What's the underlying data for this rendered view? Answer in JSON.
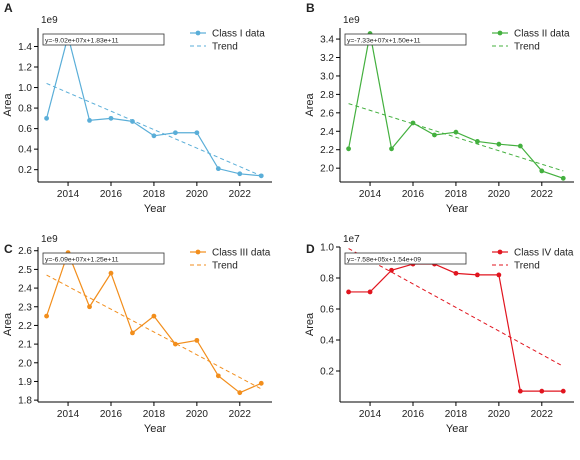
{
  "colors": {
    "class1": "#5aaed8",
    "class2": "#44b03f",
    "class3": "#f28e1c",
    "class4": "#e1151f",
    "axis": "#000000",
    "text": "#222222"
  },
  "chart_data": [
    {
      "panel_letter": "A",
      "type": "line",
      "exponent_label": "1e9",
      "xlabel": "Year",
      "ylabel": "Area",
      "xlim": [
        2012.6,
        2023.5
      ],
      "ylim": [
        0.08,
        1.58
      ],
      "xticks": [
        "2014",
        "2016",
        "2018",
        "2020",
        "2022"
      ],
      "yticks": [
        "0.2",
        "0.4",
        "0.6",
        "0.8",
        "1.0",
        "1.2",
        "1.4"
      ],
      "equation": "y=-9.02e+07x+1.83e+11",
      "color_key": "class1",
      "legend_position": "top-right",
      "series": [
        {
          "name": "Class I data",
          "x": [
            2013,
            2014,
            2015,
            2016,
            2017,
            2018,
            2019,
            2020,
            2021,
            2022,
            2023
          ],
          "y": [
            0.7,
            1.5,
            0.68,
            0.7,
            0.67,
            0.53,
            0.56,
            0.56,
            0.21,
            0.16,
            0.14
          ]
        }
      ],
      "trend": {
        "name": "Trend",
        "x": [
          2013,
          2023
        ],
        "y": [
          1.04,
          0.14
        ]
      }
    },
    {
      "panel_letter": "B",
      "type": "line",
      "exponent_label": "1e9",
      "xlabel": "Year",
      "ylabel": "Area",
      "xlim": [
        2012.6,
        2023.5
      ],
      "ylim": [
        1.85,
        3.52
      ],
      "xticks": [
        "2014",
        "2016",
        "2018",
        "2020",
        "2022"
      ],
      "yticks": [
        "2.0",
        "2.2",
        "2.4",
        "2.6",
        "2.8",
        "3.0",
        "3.2",
        "3.4"
      ],
      "equation": "y=-7.33e+07x+1.50e+11",
      "color_key": "class2",
      "legend_position": "top-right",
      "series": [
        {
          "name": "Class II data",
          "x": [
            2013,
            2014,
            2015,
            2016,
            2017,
            2018,
            2019,
            2020,
            2021,
            2022,
            2023
          ],
          "y": [
            2.21,
            3.46,
            2.21,
            2.49,
            2.36,
            2.39,
            2.29,
            2.26,
            2.24,
            1.97,
            1.89
          ]
        }
      ],
      "trend": {
        "name": "Trend",
        "x": [
          2013,
          2023
        ],
        "y": [
          2.7,
          1.97
        ]
      }
    },
    {
      "panel_letter": "C",
      "type": "line",
      "exponent_label": "1e9",
      "xlabel": "Year",
      "ylabel": "Area",
      "xlim": [
        2012.6,
        2023.5
      ],
      "ylim": [
        1.79,
        2.62
      ],
      "xticks": [
        "2014",
        "2016",
        "2018",
        "2020",
        "2022"
      ],
      "yticks": [
        "1.8",
        "1.9",
        "2.0",
        "2.1",
        "2.2",
        "2.3",
        "2.4",
        "2.5",
        "2.6"
      ],
      "equation": "y=-6.09e+07x+1.25e+11",
      "color_key": "class3",
      "legend_position": "top-right",
      "series": [
        {
          "name": "Class III data",
          "x": [
            2013,
            2014,
            2015,
            2016,
            2017,
            2018,
            2019,
            2020,
            2021,
            2022,
            2023
          ],
          "y": [
            2.25,
            2.59,
            2.3,
            2.48,
            2.16,
            2.25,
            2.1,
            2.12,
            1.93,
            1.84,
            1.89
          ]
        }
      ],
      "trend": {
        "name": "Trend",
        "x": [
          2013,
          2023
        ],
        "y": [
          2.47,
          1.86
        ]
      }
    },
    {
      "panel_letter": "D",
      "type": "line",
      "exponent_label": "1e7",
      "xlabel": "Year",
      "ylabel": "Area",
      "xlim": [
        2012.6,
        2023.5
      ],
      "ylim": [
        0.0,
        1.0
      ],
      "xticks": [
        "2014",
        "2016",
        "2018",
        "2020",
        "2022"
      ],
      "yticks": [
        "0.2",
        "0.4",
        "0.6",
        "0.8",
        "1.0"
      ],
      "equation": "y=-7.58e+05x+1.54e+09",
      "color_key": "class4",
      "legend_position": "top-right",
      "series": [
        {
          "name": "Class IV data",
          "x": [
            2013,
            2014,
            2015,
            2016,
            2017,
            2018,
            2019,
            2020,
            2021,
            2022,
            2023
          ],
          "y": [
            0.71,
            0.71,
            0.85,
            0.89,
            0.89,
            0.83,
            0.82,
            0.82,
            0.07,
            0.07,
            0.07
          ]
        }
      ],
      "trend": {
        "name": "Trend",
        "x": [
          2013,
          2023
        ],
        "y": [
          0.99,
          0.23
        ]
      }
    }
  ]
}
